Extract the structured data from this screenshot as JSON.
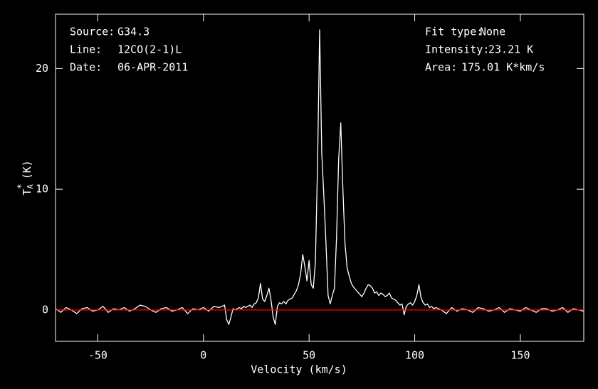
{
  "chart_data": {
    "type": "line",
    "x_label": "Velocity (km/s)",
    "y_label": {
      "base": "T",
      "sub": "A",
      "sup": "*",
      "unit": "(K)"
    },
    "info_left": [
      {
        "label": "Source:",
        "value": "G34.3"
      },
      {
        "label": "Line:",
        "value": "12CO(2-1)L"
      },
      {
        "label": "Date:",
        "value": "06-APR-2011"
      }
    ],
    "info_right": [
      {
        "label": "Fit type:",
        "value": "None"
      },
      {
        "label": "Intensity:",
        "value": "23.21 K"
      },
      {
        "label": "Area:",
        "value": "175.01 K*km/s"
      }
    ],
    "color": "#ffffff",
    "reference_line": {
      "value": 0,
      "color": "#ff0000"
    },
    "xlim": [
      -70,
      180
    ],
    "ylim": [
      -2.6,
      24.5
    ],
    "xticks": [
      -50,
      0,
      50,
      100,
      150
    ],
    "yticks": [
      0,
      10,
      20
    ],
    "x": [
      -70,
      -67.5,
      -65,
      -62.5,
      -60,
      -57.5,
      -55,
      -52.5,
      -50,
      -47.5,
      -45,
      -42.5,
      -40,
      -37.5,
      -35,
      -32.5,
      -30,
      -27.5,
      -25,
      -22.5,
      -20,
      -17.5,
      -15,
      -12.5,
      -10,
      -7.5,
      -5,
      -2.5,
      0,
      2.5,
      5,
      7.5,
      10,
      11,
      12,
      13,
      14,
      15,
      16,
      17,
      18,
      19,
      20,
      21,
      22,
      23,
      24,
      25,
      26,
      27,
      28,
      29,
      30,
      31,
      32,
      33,
      34,
      35,
      36,
      37,
      38,
      39,
      40,
      41,
      42,
      43,
      44,
      45,
      46,
      47,
      48,
      49,
      50,
      51,
      52,
      53,
      54,
      55,
      56,
      57,
      58,
      59,
      60,
      61,
      62,
      63,
      64,
      65,
      66,
      67,
      68,
      69,
      70,
      71,
      72,
      73,
      74,
      75,
      76,
      77,
      78,
      79,
      80,
      81,
      82,
      83,
      84,
      85,
      86,
      87,
      88,
      89,
      90,
      91,
      92,
      93,
      94,
      95,
      96,
      97,
      98,
      99,
      100,
      101,
      102,
      103,
      104,
      105,
      106,
      107,
      108,
      109,
      110,
      112.5,
      115,
      117.5,
      120,
      122.5,
      125,
      127.5,
      130,
      132.5,
      135,
      137.5,
      140,
      142.5,
      145,
      147.5,
      150,
      152.5,
      155,
      157.5,
      160,
      162.5,
      165,
      167.5,
      170,
      172.5,
      175,
      177.5,
      180
    ],
    "values": [
      0.1,
      -0.2,
      0.2,
      0.0,
      -0.3,
      0.1,
      0.2,
      -0.1,
      0.0,
      0.3,
      -0.2,
      0.1,
      0.0,
      0.2,
      -0.1,
      0.1,
      0.4,
      0.3,
      0.0,
      -0.2,
      0.1,
      0.2,
      -0.1,
      0.0,
      0.2,
      -0.3,
      0.1,
      0.0,
      0.2,
      -0.1,
      0.3,
      0.2,
      0.4,
      -0.8,
      -1.2,
      -0.6,
      0.1,
      0.0,
      0.1,
      0.2,
      0.1,
      0.3,
      0.2,
      0.3,
      0.4,
      0.2,
      0.5,
      0.6,
      1.0,
      2.2,
      0.9,
      0.7,
      1.2,
      1.8,
      0.8,
      -0.6,
      -1.2,
      0.3,
      0.6,
      0.5,
      0.7,
      0.5,
      0.8,
      0.9,
      1.0,
      1.3,
      1.6,
      2.1,
      3.0,
      4.6,
      3.6,
      2.4,
      4.1,
      2.1,
      1.8,
      4.0,
      12.0,
      23.21,
      13.0,
      9.4,
      5.5,
      1.2,
      0.5,
      1.2,
      1.8,
      6.0,
      12.5,
      15.5,
      10.0,
      5.5,
      3.5,
      2.8,
      2.2,
      1.9,
      1.7,
      1.5,
      1.3,
      1.1,
      1.4,
      1.8,
      2.1,
      2.0,
      1.8,
      1.4,
      1.5,
      1.2,
      1.4,
      1.3,
      1.1,
      1.2,
      1.4,
      1.0,
      0.9,
      0.8,
      0.6,
      0.4,
      0.5,
      -0.4,
      0.3,
      0.5,
      0.6,
      0.4,
      0.7,
      1.2,
      2.1,
      1.0,
      0.6,
      0.4,
      0.5,
      0.2,
      0.3,
      0.1,
      0.2,
      0.0,
      -0.3,
      0.2,
      -0.1,
      0.1,
      0.0,
      -0.2,
      0.2,
      0.1,
      -0.1,
      0.0,
      0.2,
      -0.2,
      0.1,
      0.0,
      -0.1,
      0.2,
      0.0,
      -0.2,
      0.1,
      0.1,
      -0.1,
      0.0,
      0.2,
      -0.2,
      0.1,
      0.0,
      -0.1
    ]
  }
}
